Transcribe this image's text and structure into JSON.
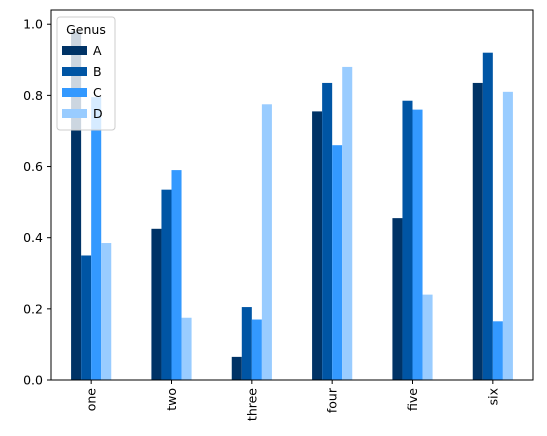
{
  "chart_data": {
    "type": "bar",
    "categories": [
      "one",
      "two",
      "three",
      "four",
      "five",
      "six"
    ],
    "series": [
      {
        "name": "A",
        "values": [
          0.98,
          0.425,
          0.065,
          0.755,
          0.455,
          0.835
        ],
        "color": "#003366"
      },
      {
        "name": "B",
        "values": [
          0.35,
          0.535,
          0.205,
          0.835,
          0.785,
          0.92
        ],
        "color": "#0055A4"
      },
      {
        "name": "C",
        "values": [
          0.795,
          0.59,
          0.17,
          0.66,
          0.76,
          0.165
        ],
        "color": "#3399FF"
      },
      {
        "name": "D",
        "values": [
          0.385,
          0.175,
          0.775,
          0.88,
          0.24,
          0.81
        ],
        "color": "#99CCFF"
      }
    ],
    "legend": {
      "title": "Genus",
      "placement": "top-left"
    },
    "ylim": [
      0.0,
      1.04
    ],
    "yticks": [
      "0.0",
      "0.2",
      "0.4",
      "0.6",
      "0.8",
      "1.0"
    ],
    "xlabel": "",
    "ylabel": "",
    "grid": false
  }
}
